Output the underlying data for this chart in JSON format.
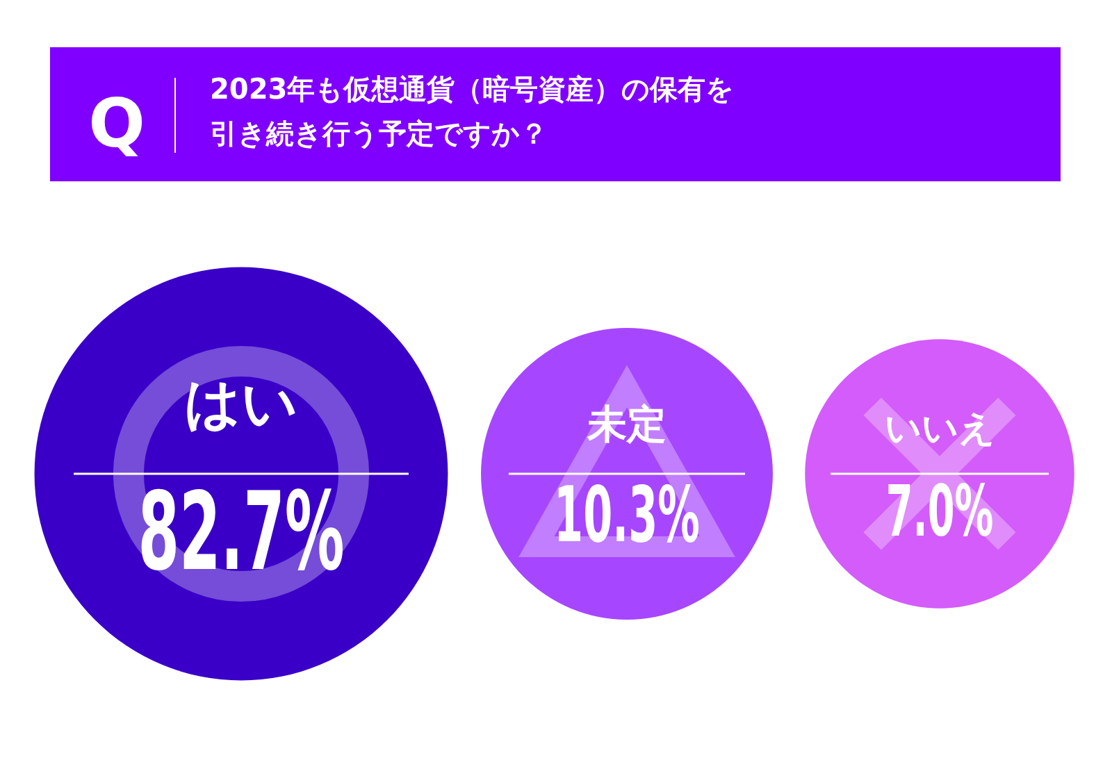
{
  "chart_data": {
    "type": "other",
    "title": "2023年も仮想通貨（暗号資産）の保有を引き続き行う予定ですか？",
    "annotations": [
      "Q"
    ],
    "categories": [
      "はい",
      "未定",
      "いいえ"
    ],
    "values": [
      82.7,
      10.3,
      7.0
    ],
    "value_labels": [
      "82.7%",
      "10.3%",
      "7.0%"
    ],
    "colors": [
      "#3a00c8",
      "#a647ff",
      "#d35cfa"
    ]
  }
}
